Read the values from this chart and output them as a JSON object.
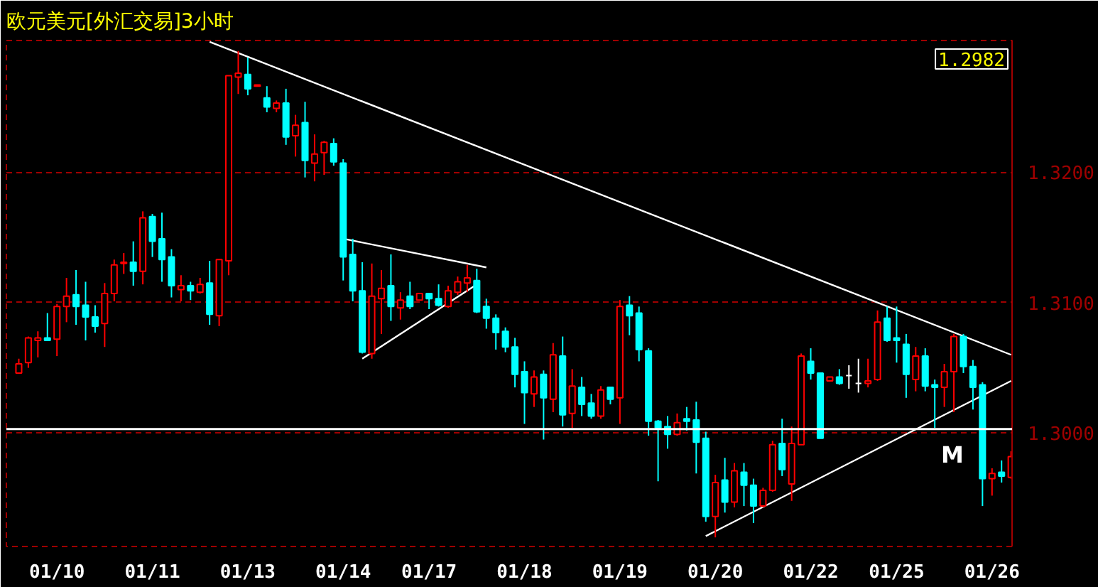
{
  "chart_data": {
    "type": "candlestick",
    "title": "欧元美元[外汇交易]3小时",
    "categories": [
      null,
      null,
      null,
      null,
      "01/10",
      null,
      null,
      null,
      null,
      null,
      null,
      null,
      null,
      null,
      "01/11",
      null,
      null,
      null,
      null,
      null,
      null,
      null,
      null,
      null,
      "01/13",
      null,
      null,
      null,
      null,
      null,
      null,
      null,
      null,
      null,
      "01/14",
      null,
      null,
      null,
      null,
      null,
      null,
      null,
      null,
      "01/17",
      null,
      null,
      null,
      null,
      null,
      null,
      null,
      null,
      null,
      "01/18",
      null,
      null,
      null,
      null,
      null,
      null,
      null,
      null,
      null,
      "01/19",
      null,
      null,
      null,
      null,
      null,
      null,
      null,
      null,
      null,
      "01/20",
      null,
      null,
      null,
      null,
      null,
      null,
      null,
      null,
      null,
      "01/22",
      null,
      null,
      null,
      null,
      null,
      null,
      null,
      null,
      "01/25",
      null,
      null,
      null,
      null,
      null,
      null,
      null,
      null,
      null,
      "01/26",
      null,
      null
    ],
    "ohlc": [
      [
        1.3046,
        1.3057,
        1.3046,
        1.3053
      ],
      [
        1.3054,
        1.3074,
        1.305,
        1.3073
      ],
      [
        1.3071,
        1.3078,
        1.3058,
        1.3073
      ],
      [
        1.3073,
        1.3092,
        1.3071,
        1.3071
      ],
      [
        1.3072,
        1.3099,
        1.3059,
        1.3097
      ],
      [
        1.3097,
        1.3119,
        1.3085,
        1.3105
      ],
      [
        1.3106,
        1.3125,
        1.3083,
        1.3097
      ],
      [
        1.3098,
        1.3116,
        1.3071,
        1.3089
      ],
      [
        1.3089,
        1.3098,
        1.3077,
        1.3082
      ],
      [
        1.3084,
        1.3115,
        1.3066,
        1.3107
      ],
      [
        1.3107,
        1.3133,
        1.3101,
        1.3129
      ],
      [
        1.313,
        1.3138,
        1.3122,
        1.3131
      ],
      [
        1.3131,
        1.3147,
        1.3113,
        1.3124
      ],
      [
        1.3124,
        1.317,
        1.3114,
        1.3165
      ],
      [
        1.3166,
        1.3168,
        1.3135,
        1.3147
      ],
      [
        1.3149,
        1.3169,
        1.3116,
        1.3133
      ],
      [
        1.3135,
        1.3141,
        1.3104,
        1.3113
      ],
      [
        1.311,
        1.3121,
        1.3101,
        1.3113
      ],
      [
        1.3113,
        1.3116,
        1.3102,
        1.3109
      ],
      [
        1.3108,
        1.3119,
        1.3107,
        1.3114
      ],
      [
        1.3115,
        1.3132,
        1.3083,
        1.3091
      ],
      [
        1.309,
        1.3133,
        1.3082,
        1.3133
      ],
      [
        1.3132,
        1.3274,
        1.3121,
        1.3274
      ],
      [
        1.3273,
        1.3293,
        1.326,
        1.3276
      ],
      [
        1.3275,
        1.3288,
        1.3259,
        1.3264
      ],
      [
        1.3266,
        1.3267,
        1.3266,
        1.3267
      ],
      [
        1.3257,
        1.3266,
        1.3246,
        1.325
      ],
      [
        1.3249,
        1.3255,
        1.3246,
        1.3253
      ],
      [
        1.3253,
        1.3264,
        1.3221,
        1.3227
      ],
      [
        1.3228,
        1.3244,
        1.3212,
        1.3236
      ],
      [
        1.3238,
        1.3254,
        1.3196,
        1.3209
      ],
      [
        1.3207,
        1.3229,
        1.3193,
        1.3214
      ],
      [
        1.3215,
        1.3224,
        1.3198,
        1.3223
      ],
      [
        1.3222,
        1.3226,
        1.3205,
        1.3208
      ],
      [
        1.3207,
        1.321,
        1.3117,
        1.3135
      ],
      [
        1.3137,
        1.3149,
        1.3101,
        1.3109
      ],
      [
        1.3109,
        1.3131,
        1.3061,
        1.3062
      ],
      [
        1.3061,
        1.313,
        1.3057,
        1.3105
      ],
      [
        1.3103,
        1.3125,
        1.3076,
        1.3111
      ],
      [
        1.3113,
        1.3137,
        1.3086,
        1.3097
      ],
      [
        1.3096,
        1.3108,
        1.3087,
        1.3102
      ],
      [
        1.3105,
        1.3116,
        1.3095,
        1.3097
      ],
      [
        1.3102,
        1.3107,
        1.3102,
        1.3107
      ],
      [
        1.3107,
        1.3107,
        1.3095,
        1.3103
      ],
      [
        1.3103,
        1.3114,
        1.3097,
        1.3098
      ],
      [
        1.3097,
        1.3113,
        1.3096,
        1.3109
      ],
      [
        1.3108,
        1.312,
        1.3106,
        1.3116
      ],
      [
        1.3115,
        1.3129,
        1.3108,
        1.3119
      ],
      [
        1.3117,
        1.3126,
        1.3092,
        1.3093
      ],
      [
        1.3097,
        1.3103,
        1.308,
        1.3088
      ],
      [
        1.3088,
        1.3091,
        1.3064,
        1.3077
      ],
      [
        1.3078,
        1.3081,
        1.3062,
        1.3066
      ],
      [
        1.3066,
        1.3073,
        1.3035,
        1.3045
      ],
      [
        1.3047,
        1.3055,
        1.3007,
        1.3031
      ],
      [
        1.303,
        1.3048,
        1.302,
        1.3043
      ],
      [
        1.3045,
        1.3048,
        1.2995,
        1.3027
      ],
      [
        1.3026,
        1.3069,
        1.3016,
        1.306
      ],
      [
        1.3059,
        1.3074,
        1.3005,
        1.3014
      ],
      [
        1.3015,
        1.3049,
        1.3004,
        1.3036
      ],
      [
        1.3035,
        1.3043,
        1.3013,
        1.3022
      ],
      [
        1.3023,
        1.303,
        1.3011,
        1.3013
      ],
      [
        1.3013,
        1.3036,
        1.3011,
        1.3033
      ],
      [
        1.3035,
        1.3035,
        1.3022,
        1.3026
      ],
      [
        1.3027,
        1.3102,
        1.3007,
        1.3097
      ],
      [
        1.3098,
        1.3105,
        1.3075,
        1.309
      ],
      [
        1.3092,
        1.3097,
        1.3055,
        1.3064
      ],
      [
        1.3063,
        1.3065,
        1.2998,
        1.3009
      ],
      [
        1.3009,
        1.301,
        1.2963,
        1.3004
      ],
      [
        1.3005,
        1.3013,
        1.2988,
        1.2999
      ],
      [
        1.2999,
        1.3015,
        1.2998,
        1.3008
      ],
      [
        1.3011,
        1.302,
        1.3002,
        1.3009
      ],
      [
        1.301,
        1.3024,
        1.2969,
        1.2993
      ],
      [
        1.2996,
        1.3001,
        1.2932,
        1.2936
      ],
      [
        1.2936,
        1.2968,
        1.292,
        1.2962
      ],
      [
        1.2964,
        1.2981,
        1.2939,
        1.2947
      ],
      [
        1.2947,
        1.2977,
        1.2943,
        1.2971
      ],
      [
        1.297,
        1.2977,
        1.2944,
        1.296
      ],
      [
        1.296,
        1.2965,
        1.2931,
        1.2944
      ],
      [
        1.2944,
        1.2958,
        1.2943,
        1.2956
      ],
      [
        1.2956,
        1.2994,
        1.2955,
        1.2991
      ],
      [
        1.2992,
        1.3011,
        1.2967,
        1.2972
      ],
      [
        1.2961,
        1.3005,
        1.2948,
        1.2992
      ],
      [
        1.2991,
        1.3061,
        1.2991,
        1.3059
      ],
      [
        1.3055,
        1.3065,
        1.3041,
        1.3046
      ],
      [
        1.3046,
        1.3046,
        1.2996,
        1.2996
      ],
      [
        1.304,
        1.3043,
        1.304,
        1.3043
      ],
      [
        1.3043,
        1.3049,
        1.3037,
        1.3038
      ],
      [
        1.3044,
        1.3052,
        1.3034,
        1.3044
      ],
      [
        1.3038,
        1.3057,
        1.3031,
        1.3038
      ],
      [
        1.3038,
        1.3057,
        1.3035,
        1.304
      ],
      [
        1.3041,
        1.3094,
        1.304,
        1.3085
      ],
      [
        1.3088,
        1.3097,
        1.307,
        1.3071
      ],
      [
        1.3073,
        1.3097,
        1.3054,
        1.3071
      ],
      [
        1.3068,
        1.3076,
        1.3027,
        1.3045
      ],
      [
        1.3041,
        1.3066,
        1.3032,
        1.3059
      ],
      [
        1.3059,
        1.3065,
        1.3032,
        1.3036
      ],
      [
        1.3037,
        1.3041,
        1.3004,
        1.3035
      ],
      [
        1.3035,
        1.3053,
        1.302,
        1.3047
      ],
      [
        1.3047,
        1.3076,
        1.3016,
        1.3074
      ],
      [
        1.3074,
        1.3076,
        1.3046,
        1.3051
      ],
      [
        1.3051,
        1.3056,
        1.3018,
        1.3035
      ],
      [
        1.3037,
        1.3039,
        1.2944,
        1.2965
      ],
      [
        1.2965,
        1.2973,
        1.2952,
        1.2969
      ],
      [
        1.297,
        1.2979,
        1.2962,
        1.2967
      ],
      [
        1.2966,
        1.2986,
        1.2965,
        1.2982
      ]
    ],
    "colors": [
      "#ff0000",
      "#ff0000",
      "#ff0000",
      "#00ffff",
      "#ff0000",
      "#ff0000",
      "#00ffff",
      "#00ffff",
      "#00ffff",
      "#ff0000",
      "#ff0000",
      "#ff0000",
      "#00ffff",
      "#ff0000",
      "#00ffff",
      "#00ffff",
      "#00ffff",
      "#ff0000",
      "#00ffff",
      "#ff0000",
      "#00ffff",
      "#ff0000",
      "#ff0000",
      "#ff0000",
      "#00ffff",
      "#ff0000",
      "#00ffff",
      "#ff0000",
      "#00ffff",
      "#ff0000",
      "#00ffff",
      "#ff0000",
      "#ff0000",
      "#00ffff",
      "#00ffff",
      "#00ffff",
      "#00ffff",
      "#ff0000",
      "#ff0000",
      "#00ffff",
      "#ff0000",
      "#00ffff",
      "#ff0000",
      "#00ffff",
      "#00ffff",
      "#ff0000",
      "#ff0000",
      "#ff0000",
      "#00ffff",
      "#00ffff",
      "#00ffff",
      "#00ffff",
      "#00ffff",
      "#00ffff",
      "#ff0000",
      "#00ffff",
      "#ff0000",
      "#00ffff",
      "#ff0000",
      "#00ffff",
      "#00ffff",
      "#ff0000",
      "#00ffff",
      "#ff0000",
      "#00ffff",
      "#00ffff",
      "#00ffff",
      "#00ffff",
      "#00ffff",
      "#ff0000",
      "#00ffff",
      "#00ffff",
      "#00ffff",
      "#ff0000",
      "#00ffff",
      "#ff0000",
      "#00ffff",
      "#00ffff",
      "#ff0000",
      "#ff0000",
      "#00ffff",
      "#ff0000",
      "#ff0000",
      "#00ffff",
      "#00ffff",
      "#ff0000",
      "#00ffff",
      "#ffffff",
      "#ffffff",
      "#ff0000",
      "#ff0000",
      "#00ffff",
      "#00ffff",
      "#00ffff",
      "#ff0000",
      "#00ffff",
      "#00ffff",
      "#ff0000",
      "#ff0000",
      "#00ffff",
      "#00ffff",
      "#00ffff",
      "#ff0000",
      "#00ffff",
      "#ff0000"
    ],
    "series": [
      {
        "type": "line",
        "color": "#ffffff",
        "values": [
          null,
          null,
          null,
          null,
          null,
          null,
          null,
          null,
          null,
          null,
          null,
          null,
          null,
          null,
          null,
          null,
          null,
          null,
          null,
          null,
          1.33,
          null,
          null,
          null,
          null,
          null,
          null,
          null,
          null,
          null,
          null,
          null,
          null,
          null,
          null,
          null,
          null,
          null,
          null,
          null,
          null,
          null,
          null,
          null,
          null,
          null,
          null,
          null,
          null,
          null,
          null,
          null,
          null,
          null,
          null,
          null,
          null,
          null,
          null,
          null,
          null,
          null,
          null,
          null,
          null,
          null,
          null,
          null,
          null,
          null,
          null,
          null,
          null,
          null,
          null,
          null,
          null,
          null,
          null,
          null,
          null,
          null,
          null,
          null,
          null,
          null,
          null,
          null,
          null,
          null,
          null,
          null,
          null,
          null,
          null,
          null,
          null,
          null,
          null,
          null,
          null,
          null,
          null,
          null,
          1.306
        ]
      },
      {
        "type": "line",
        "color": "#ffffff",
        "values": [
          null,
          null,
          null,
          null,
          null,
          null,
          null,
          null,
          null,
          null,
          null,
          null,
          null,
          null,
          null,
          null,
          null,
          null,
          null,
          null,
          null,
          null,
          null,
          null,
          null,
          null,
          null,
          null,
          null,
          null,
          null,
          null,
          null,
          null,
          1.3149,
          null,
          null,
          null,
          null,
          null,
          null,
          null,
          null,
          null,
          null,
          null,
          null,
          null,
          null,
          1.3127,
          null,
          null,
          null,
          null,
          null,
          null,
          null,
          null,
          null,
          null,
          null,
          null,
          null,
          null,
          null,
          null,
          null,
          null,
          null,
          null,
          null,
          null,
          null,
          null,
          null,
          null,
          null,
          null,
          null,
          null,
          null,
          null,
          null,
          null,
          null,
          null,
          null,
          null,
          null,
          null,
          null,
          null,
          null,
          null,
          null,
          null,
          null,
          null,
          null,
          null,
          null,
          null,
          null,
          null,
          null
        ]
      },
      {
        "type": "line",
        "color": "#ffffff",
        "values": [
          null,
          null,
          null,
          null,
          null,
          null,
          null,
          null,
          null,
          null,
          null,
          null,
          null,
          null,
          null,
          null,
          null,
          null,
          null,
          null,
          null,
          null,
          null,
          null,
          null,
          null,
          null,
          null,
          null,
          null,
          null,
          null,
          null,
          null,
          null,
          null,
          1.3057,
          null,
          null,
          null,
          null,
          null,
          null,
          null,
          null,
          null,
          null,
          null,
          1.3114,
          null,
          null,
          null,
          null,
          null,
          null,
          null,
          null,
          null,
          null,
          null,
          null,
          null,
          null,
          null,
          null,
          null,
          null,
          null,
          null,
          null,
          null,
          null,
          null,
          null,
          null,
          null,
          null,
          null,
          null,
          null,
          null,
          null,
          null,
          null,
          null,
          null,
          null,
          null,
          null,
          null,
          null,
          null,
          null,
          null,
          null,
          null,
          null,
          null,
          null,
          null,
          null,
          null,
          null,
          null,
          null
        ]
      },
      {
        "type": "line",
        "color": "#ffffff",
        "values": [
          null,
          null,
          null,
          null,
          null,
          null,
          null,
          null,
          null,
          null,
          null,
          null,
          null,
          null,
          null,
          null,
          null,
          null,
          null,
          null,
          null,
          null,
          null,
          null,
          null,
          null,
          null,
          null,
          null,
          null,
          null,
          null,
          null,
          null,
          null,
          null,
          null,
          null,
          null,
          null,
          null,
          null,
          null,
          null,
          null,
          null,
          null,
          null,
          null,
          null,
          null,
          null,
          null,
          null,
          null,
          null,
          null,
          null,
          null,
          null,
          null,
          null,
          null,
          null,
          null,
          null,
          null,
          null,
          null,
          null,
          null,
          null,
          1.2921,
          null,
          null,
          null,
          null,
          null,
          null,
          null,
          null,
          null,
          null,
          null,
          null,
          null,
          null,
          null,
          null,
          null,
          null,
          null,
          null,
          null,
          null,
          null,
          null,
          null,
          null,
          null,
          null,
          null,
          null,
          null,
          1.304
        ]
      }
    ],
    "ref_lines": [
      {
        "axis": "y",
        "value": 1.3003,
        "color": "#ffffff"
      }
    ],
    "annotations": [
      "1.2982",
      "M"
    ],
    "ylim": [
      1.2913,
      1.3301
    ],
    "yticks": [
      {
        "value": 1.3,
        "label": "1.3000"
      },
      {
        "value": 1.31,
        "label": "1.3100"
      },
      {
        "value": 1.32,
        "label": "1.3200"
      }
    ],
    "grid": "y"
  }
}
